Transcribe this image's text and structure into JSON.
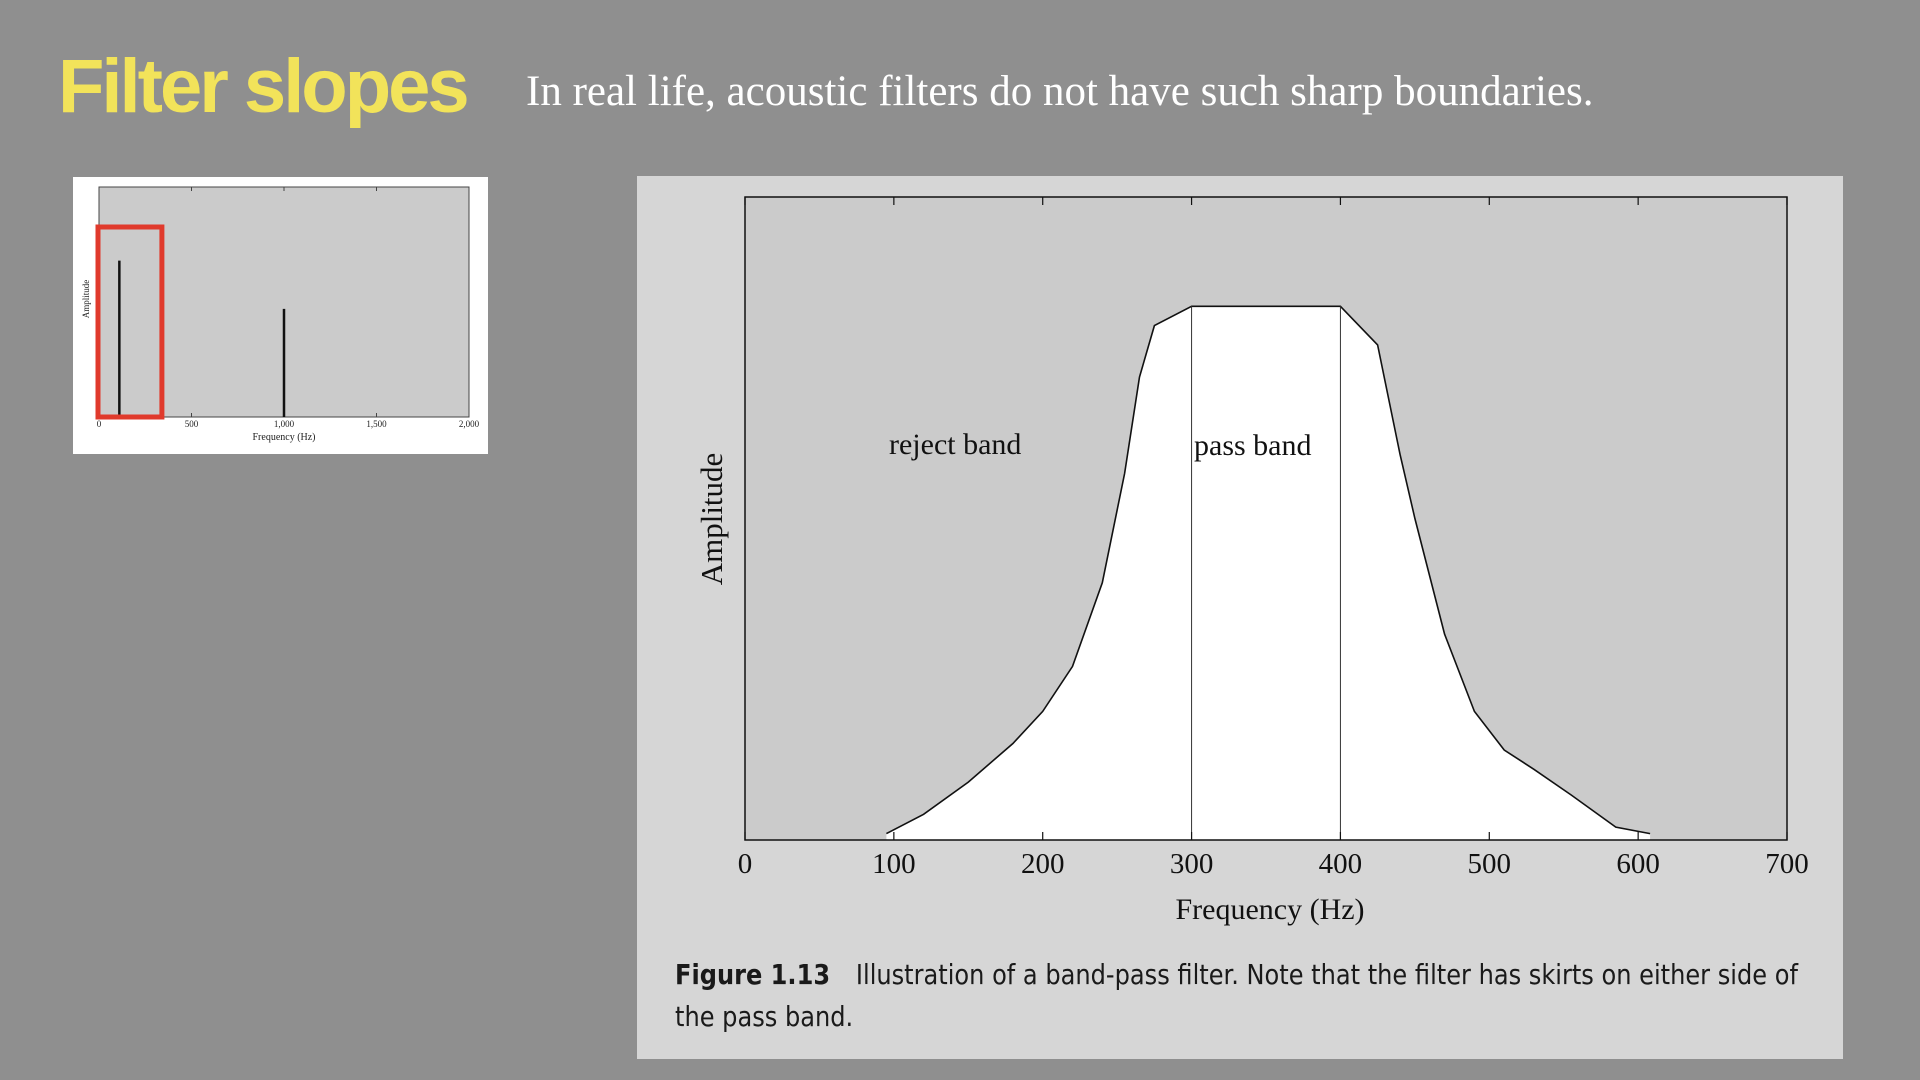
{
  "slide": {
    "title": "Filter slopes",
    "subtitle": "In real life, acoustic filters do not have such sharp boundaries."
  },
  "colors": {
    "title": "#f2e35a",
    "background": "#8f8f8f",
    "plot_area": "#cbcbcb",
    "figure_panel": "#d6d6d6",
    "highlight_box": "#e03a2c"
  },
  "chart_data": [
    {
      "id": "thumbnail",
      "type": "bar",
      "xlabel": "Frequency (Hz)",
      "ylabel": "Amplitude",
      "xlim": [
        0,
        2000
      ],
      "xticks": [
        0,
        500,
        1000,
        1500,
        2000
      ],
      "xtick_labels": [
        "0",
        "500",
        "1,000",
        "1,500",
        "2,000"
      ],
      "ylim": [
        0,
        1
      ],
      "lines": [
        {
          "x": 110,
          "y": 0.68
        },
        {
          "x": 1000,
          "y": 0.47
        }
      ],
      "highlight_range": [
        0,
        340
      ]
    },
    {
      "id": "main",
      "type": "area",
      "xlabel": "Frequency (Hz)",
      "ylabel": "Amplitude",
      "xlim": [
        0,
        700
      ],
      "xticks": [
        0,
        100,
        200,
        300,
        400,
        500,
        600,
        700
      ],
      "xtick_labels": [
        "0",
        "100",
        "200",
        "300",
        "400",
        "500",
        "600",
        "700"
      ],
      "ylim": [
        0,
        1
      ],
      "pass_band": [
        300,
        400
      ],
      "annotations": {
        "reject": "reject band",
        "pass": "pass band"
      },
      "curve": [
        [
          95,
          0.01
        ],
        [
          120,
          0.04
        ],
        [
          150,
          0.09
        ],
        [
          180,
          0.15
        ],
        [
          200,
          0.2
        ],
        [
          220,
          0.27
        ],
        [
          240,
          0.4
        ],
        [
          255,
          0.57
        ],
        [
          265,
          0.72
        ],
        [
          275,
          0.8
        ],
        [
          300,
          0.83
        ],
        [
          400,
          0.83
        ],
        [
          425,
          0.77
        ],
        [
          440,
          0.6
        ],
        [
          450,
          0.5
        ],
        [
          470,
          0.32
        ],
        [
          490,
          0.2
        ],
        [
          510,
          0.14
        ],
        [
          530,
          0.11
        ],
        [
          555,
          0.07
        ],
        [
          585,
          0.02
        ],
        [
          608,
          0.01
        ]
      ]
    }
  ],
  "caption": {
    "label": "Figure 1.13",
    "text": "Illustration of a band-pass filter. Note that the filter has skirts on either side of the pass band."
  }
}
